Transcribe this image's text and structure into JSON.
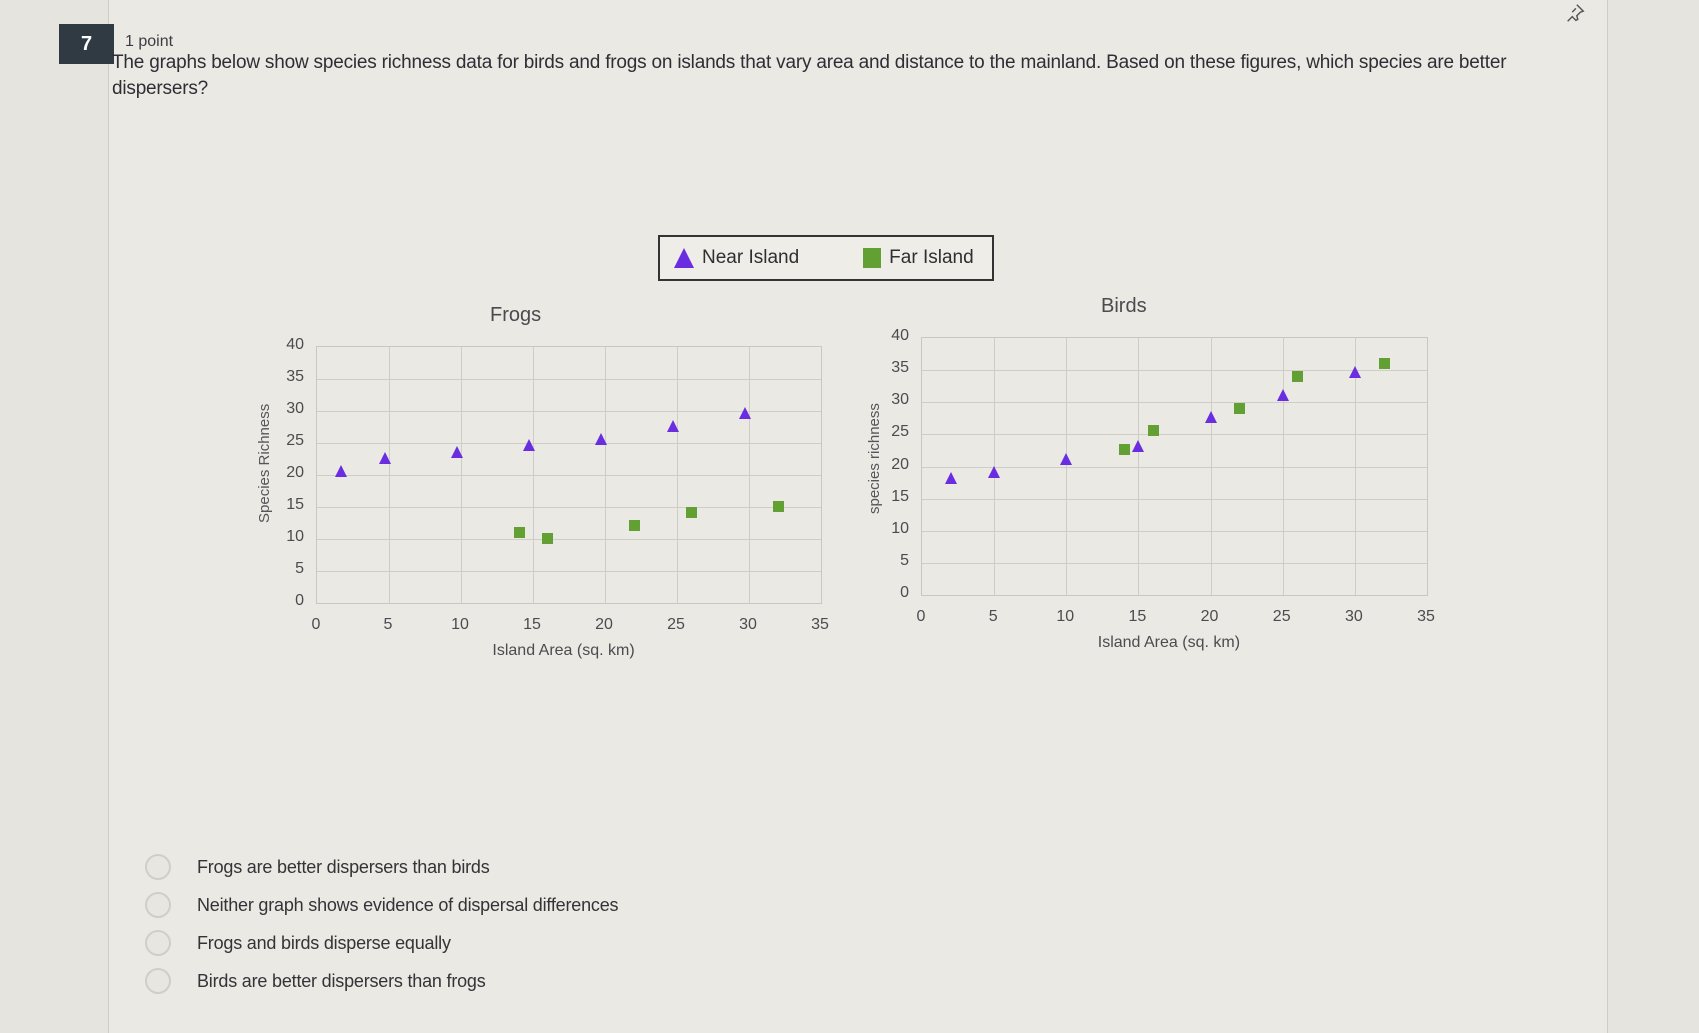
{
  "question": {
    "number": "7",
    "points": "1 point",
    "prompt": "The graphs below show species richness data for birds and frogs on islands that vary area and distance to the mainland.  Based on these figures, which species are better dispersers?",
    "pin_icon": "pin-icon"
  },
  "legend": {
    "near": {
      "label": "Near Island",
      "marker": "triangle",
      "color": "#6a2de0"
    },
    "far": {
      "label": "Far Island",
      "marker": "square",
      "color": "#63a033"
    }
  },
  "chart_data": [
    {
      "type": "scatter",
      "title": "Frogs",
      "xlabel": "Island Area (sq. km)",
      "ylabel": "Species Richness",
      "xlim": [
        0,
        35
      ],
      "ylim": [
        0,
        40
      ],
      "xticks": [
        "0",
        "5",
        "10",
        "15",
        "20",
        "25",
        "30",
        "35"
      ],
      "yticks": [
        "0",
        "5",
        "10",
        "15",
        "20",
        "25",
        "30",
        "35",
        "40"
      ],
      "grid": true,
      "series": [
        {
          "name": "Near Island",
          "marker": "triangle",
          "points": [
            [
              1.7,
              20.5
            ],
            [
              4.7,
              22.5
            ],
            [
              9.7,
              23.5
            ],
            [
              14.7,
              24.5
            ],
            [
              19.7,
              25.5
            ],
            [
              24.7,
              27.5
            ],
            [
              29.7,
              29.5
            ]
          ]
        },
        {
          "name": "Far Island",
          "marker": "square",
          "points": [
            [
              14,
              11
            ],
            [
              16,
              10
            ],
            [
              22,
              12
            ],
            [
              26,
              14
            ],
            [
              32,
              15
            ]
          ]
        }
      ]
    },
    {
      "type": "scatter",
      "title": "Birds",
      "xlabel": "Island Area (sq. km)",
      "ylabel": "species richness",
      "xlim": [
        0,
        35
      ],
      "ylim": [
        0,
        40
      ],
      "xticks": [
        "0",
        "5",
        "10",
        "15",
        "20",
        "25",
        "30",
        "35"
      ],
      "yticks": [
        "0",
        "5",
        "10",
        "15",
        "20",
        "25",
        "30",
        "35",
        "40"
      ],
      "grid": true,
      "series": [
        {
          "name": "Near Island",
          "marker": "triangle",
          "points": [
            [
              2,
              18
            ],
            [
              5,
              19
            ],
            [
              10,
              21
            ],
            [
              15,
              23
            ],
            [
              20,
              27.5
            ],
            [
              25,
              31
            ],
            [
              30,
              34.5
            ]
          ]
        },
        {
          "name": "Far Island",
          "marker": "square",
          "points": [
            [
              14,
              22.5
            ],
            [
              16,
              25.5
            ],
            [
              22,
              29
            ],
            [
              26,
              34
            ],
            [
              32,
              36
            ]
          ]
        }
      ]
    }
  ],
  "choices": [
    {
      "label": "Frogs are better dispersers than birds",
      "selected": false
    },
    {
      "label": "Neither graph shows evidence of dispersal differences",
      "selected": false
    },
    {
      "label": "Frogs and birds disperse equally",
      "selected": false
    },
    {
      "label": "Birds are better dispersers than frogs",
      "selected": false
    }
  ]
}
